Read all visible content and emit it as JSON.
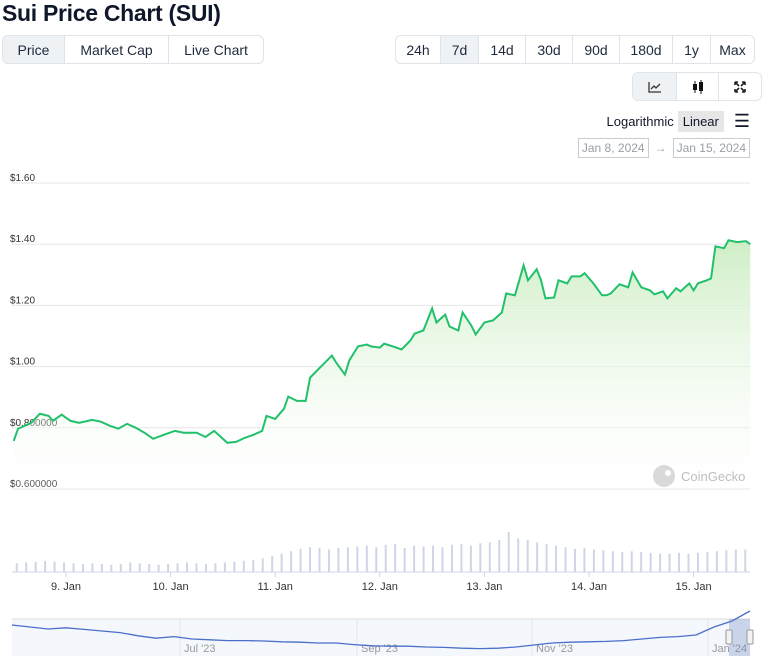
{
  "title": "Sui Price Chart (SUI)",
  "views": [
    {
      "label": "Price",
      "active": true
    },
    {
      "label": "Market Cap"
    },
    {
      "label": "Live Chart"
    }
  ],
  "ranges": [
    {
      "label": "24h"
    },
    {
      "label": "7d",
      "active": true
    },
    {
      "label": "14d"
    },
    {
      "label": "30d"
    },
    {
      "label": "90d"
    },
    {
      "label": "180d"
    },
    {
      "label": "1y"
    },
    {
      "label": "Max"
    }
  ],
  "chart_types": [
    {
      "icon": "line-chart-icon",
      "active": true
    },
    {
      "icon": "candlestick-icon"
    },
    {
      "icon": "fullscreen-icon"
    }
  ],
  "scale": {
    "log": "Logarithmic",
    "linear": "Linear",
    "selected": "Linear",
    "menu_icon": "hamburger-menu-icon"
  },
  "date_range": {
    "from": "Jan 8, 2024",
    "arrow": "→",
    "to": "Jan 15, 2024"
  },
  "watermark": "CoinGecko",
  "colors": {
    "line": "#21c16b",
    "fill": "#d8f2d0",
    "volume": "#cdd6e6",
    "navigator": "#4a6fc9"
  },
  "chart_data": {
    "type": "line",
    "y_ticks": [
      "$1.60",
      "$1.40",
      "$1.20",
      "$1.00",
      "$0.800000",
      "$0.600000"
    ],
    "ylim": [
      0.6,
      1.6
    ],
    "x_ticks": [
      "9. Jan",
      "10. Jan",
      "11. Jan",
      "12. Jan",
      "13. Jan",
      "14. Jan",
      "15. Jan"
    ],
    "grid": true,
    "series": [
      {
        "values": [
          [
            "2024-01-08T12:00",
            0.757
          ],
          [
            "2024-01-08T13:00",
            0.797
          ],
          [
            "2024-01-08T16:00",
            0.816
          ],
          [
            "2024-01-08T18:00",
            0.846
          ],
          [
            "2024-01-08T20:00",
            0.839
          ],
          [
            "2024-01-08T21:00",
            0.823
          ],
          [
            "2024-01-08T23:00",
            0.843
          ],
          [
            "2024-01-09T01:00",
            0.823
          ],
          [
            "2024-01-09T03:00",
            0.816
          ],
          [
            "2024-01-09T06:00",
            0.826
          ],
          [
            "2024-01-09T08:00",
            0.82
          ],
          [
            "2024-01-09T10:00",
            0.807
          ],
          [
            "2024-01-09T12:00",
            0.797
          ],
          [
            "2024-01-09T14:00",
            0.813
          ],
          [
            "2024-01-09T16:00",
            0.8
          ],
          [
            "2024-01-09T18:00",
            0.784
          ],
          [
            "2024-01-09T20:00",
            0.764
          ],
          [
            "2024-01-09T23:00",
            0.78
          ],
          [
            "2024-01-10T01:00",
            0.79
          ],
          [
            "2024-01-10T03:00",
            0.784
          ],
          [
            "2024-01-10T06:00",
            0.784
          ],
          [
            "2024-01-10T08:00",
            0.77
          ],
          [
            "2024-01-10T10:00",
            0.79
          ],
          [
            "2024-01-10T11:00",
            0.777
          ],
          [
            "2024-01-10T13:00",
            0.751
          ],
          [
            "2024-01-10T15:00",
            0.754
          ],
          [
            "2024-01-10T17:00",
            0.767
          ],
          [
            "2024-01-10T19:00",
            0.777
          ],
          [
            "2024-01-10T21:00",
            0.79
          ],
          [
            "2024-01-10T22:00",
            0.839
          ],
          [
            "2024-01-11T00:00",
            0.829
          ],
          [
            "2024-01-11T02:00",
            0.862
          ],
          [
            "2024-01-11T03:00",
            0.902
          ],
          [
            "2024-01-11T05:00",
            0.888
          ],
          [
            "2024-01-11T07:00",
            0.888
          ],
          [
            "2024-01-11T08:00",
            0.964
          ],
          [
            "2024-01-11T10:00",
            0.993
          ],
          [
            "2024-01-11T11:00",
            1.007
          ],
          [
            "2024-01-11T13:00",
            1.036
          ],
          [
            "2024-01-11T14:00",
            1.013
          ],
          [
            "2024-01-11T16:00",
            0.974
          ],
          [
            "2024-01-11T17:00",
            1.02
          ],
          [
            "2024-01-11T19:00",
            1.066
          ],
          [
            "2024-01-11T21:00",
            1.072
          ],
          [
            "2024-01-11T22:00",
            1.066
          ],
          [
            "2024-01-12T00:00",
            1.062
          ],
          [
            "2024-01-12T01:00",
            1.075
          ],
          [
            "2024-01-12T03:00",
            1.066
          ],
          [
            "2024-01-12T05:00",
            1.056
          ],
          [
            "2024-01-12T07:00",
            1.085
          ],
          [
            "2024-01-12T08:00",
            1.108
          ],
          [
            "2024-01-12T10:00",
            1.118
          ],
          [
            "2024-01-12T12:00",
            1.19
          ],
          [
            "2024-01-12T13:00",
            1.144
          ],
          [
            "2024-01-12T15:00",
            1.17
          ],
          [
            "2024-01-12T16:00",
            1.131
          ],
          [
            "2024-01-12T18:00",
            1.118
          ],
          [
            "2024-01-12T19:00",
            1.177
          ],
          [
            "2024-01-12T21:00",
            1.134
          ],
          [
            "2024-01-12T22:00",
            1.105
          ],
          [
            "2024-01-13T00:00",
            1.144
          ],
          [
            "2024-01-13T02:00",
            1.151
          ],
          [
            "2024-01-13T04:00",
            1.177
          ],
          [
            "2024-01-13T05:00",
            1.239
          ],
          [
            "2024-01-13T07:00",
            1.233
          ],
          [
            "2024-01-13T09:00",
            1.331
          ],
          [
            "2024-01-13T10:00",
            1.282
          ],
          [
            "2024-01-13T12:00",
            1.318
          ],
          [
            "2024-01-13T13:00",
            1.282
          ],
          [
            "2024-01-13T14:00",
            1.223
          ],
          [
            "2024-01-13T16:00",
            1.226
          ],
          [
            "2024-01-13T17:00",
            1.282
          ],
          [
            "2024-01-13T19:00",
            1.272
          ],
          [
            "2024-01-13T20:00",
            1.295
          ],
          [
            "2024-01-13T22:00",
            1.295
          ],
          [
            "2024-01-13T23:00",
            1.305
          ],
          [
            "2024-01-14T01:00",
            1.272
          ],
          [
            "2024-01-14T03:00",
            1.233
          ],
          [
            "2024-01-14T04:00",
            1.233
          ],
          [
            "2024-01-14T05:00",
            1.239
          ],
          [
            "2024-01-14T07:00",
            1.269
          ],
          [
            "2024-01-14T09:00",
            1.259
          ],
          [
            "2024-01-14T10:00",
            1.308
          ],
          [
            "2024-01-14T12:00",
            1.259
          ],
          [
            "2024-01-14T14:00",
            1.249
          ],
          [
            "2024-01-14T15:00",
            1.236
          ],
          [
            "2024-01-14T17:00",
            1.246
          ],
          [
            "2024-01-14T18:00",
            1.223
          ],
          [
            "2024-01-14T20:00",
            1.256
          ],
          [
            "2024-01-14T21:00",
            1.246
          ],
          [
            "2024-01-14T23:00",
            1.272
          ],
          [
            "2024-01-15T00:00",
            1.249
          ],
          [
            "2024-01-15T01:00",
            1.272
          ],
          [
            "2024-01-15T03:00",
            1.282
          ],
          [
            "2024-01-15T04:00",
            1.288
          ],
          [
            "2024-01-15T05:00",
            1.393
          ],
          [
            "2024-01-15T07:00",
            1.387
          ],
          [
            "2024-01-15T08:00",
            1.413
          ],
          [
            "2024-01-15T10:00",
            1.407
          ],
          [
            "2024-01-15T12:00",
            1.41
          ],
          [
            "2024-01-15T13:00",
            1.4
          ]
        ]
      }
    ],
    "volume": [
      22,
      24,
      25,
      28,
      26,
      24,
      22,
      20,
      22,
      20,
      18,
      20,
      24,
      22,
      20,
      18,
      20,
      22,
      24,
      22,
      20,
      22,
      24,
      26,
      28,
      30,
      34,
      40,
      46,
      52,
      58,
      62,
      60,
      56,
      60,
      62,
      64,
      66,
      62,
      68,
      70,
      60,
      66,
      64,
      66,
      62,
      68,
      70,
      66,
      72,
      74,
      80,
      100,
      84,
      80,
      74,
      70,
      66,
      62,
      58,
      60,
      56,
      54,
      52,
      50,
      52,
      50,
      48,
      46,
      46,
      48,
      46,
      48,
      50,
      52,
      54,
      56,
      56
    ]
  },
  "navigator": {
    "x_ticks": [
      "Jul '23",
      "Sep '23",
      "Nov '23",
      "Jan '24"
    ],
    "series": [
      1.05,
      1.0,
      0.95,
      0.98,
      0.94,
      0.9,
      0.86,
      0.78,
      0.72,
      0.76,
      0.7,
      0.68,
      0.66,
      0.66,
      0.65,
      0.63,
      0.62,
      0.6,
      0.6,
      0.56,
      0.53,
      0.52,
      0.52,
      0.5,
      0.49,
      0.47,
      0.46,
      0.47,
      0.5,
      0.55,
      0.6,
      0.62,
      0.63,
      0.64,
      0.66,
      0.7,
      0.74,
      0.76,
      0.8,
      1.0,
      1.15,
      1.4
    ]
  }
}
